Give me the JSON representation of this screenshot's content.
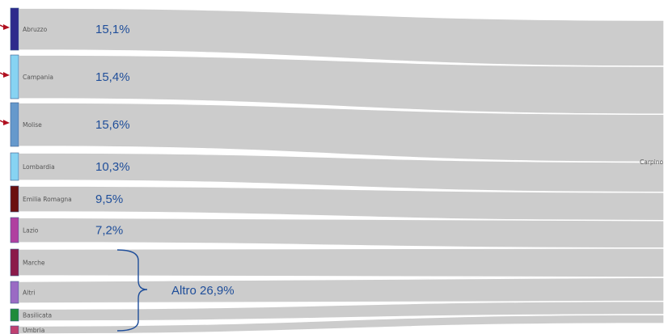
{
  "chart_data": {
    "type": "sankey",
    "target": "Carpino",
    "nodes": [
      {
        "name": "Abruzzo",
        "color": "#2e2a8c",
        "percent_label": "15,1%"
      },
      {
        "name": "Campania",
        "color": "#87d3f2",
        "percent_label": "15,4%"
      },
      {
        "name": "Molise",
        "color": "#6699cc",
        "percent_label": "15,6%"
      },
      {
        "name": "Lombardia",
        "color": "#87d3f2",
        "percent_label": "10,3%"
      },
      {
        "name": "Emilia Romagna",
        "color": "#6b0f0f",
        "percent_label": "9,5%"
      },
      {
        "name": "Lazio",
        "color": "#b040a0",
        "percent_label": "7,2%"
      },
      {
        "name": "Marche",
        "color": "#8b1a4a",
        "percent_label": ""
      },
      {
        "name": "Altri",
        "color": "#9a6bc4",
        "percent_label": ""
      },
      {
        "name": "Basilicata",
        "color": "#1e8b3a",
        "percent_label": ""
      },
      {
        "name": "Umbria",
        "color": "#c04070",
        "percent_label": ""
      }
    ],
    "group_annotation": {
      "text": "Altro 26,9%",
      "members": [
        "Marche",
        "Altri",
        "Basilicata",
        "Umbria"
      ]
    },
    "link_color": "#cccccc",
    "arrow_color": "#b01020",
    "arrow_nodes": [
      "Abruzzo",
      "Campania",
      "Molise"
    ]
  }
}
